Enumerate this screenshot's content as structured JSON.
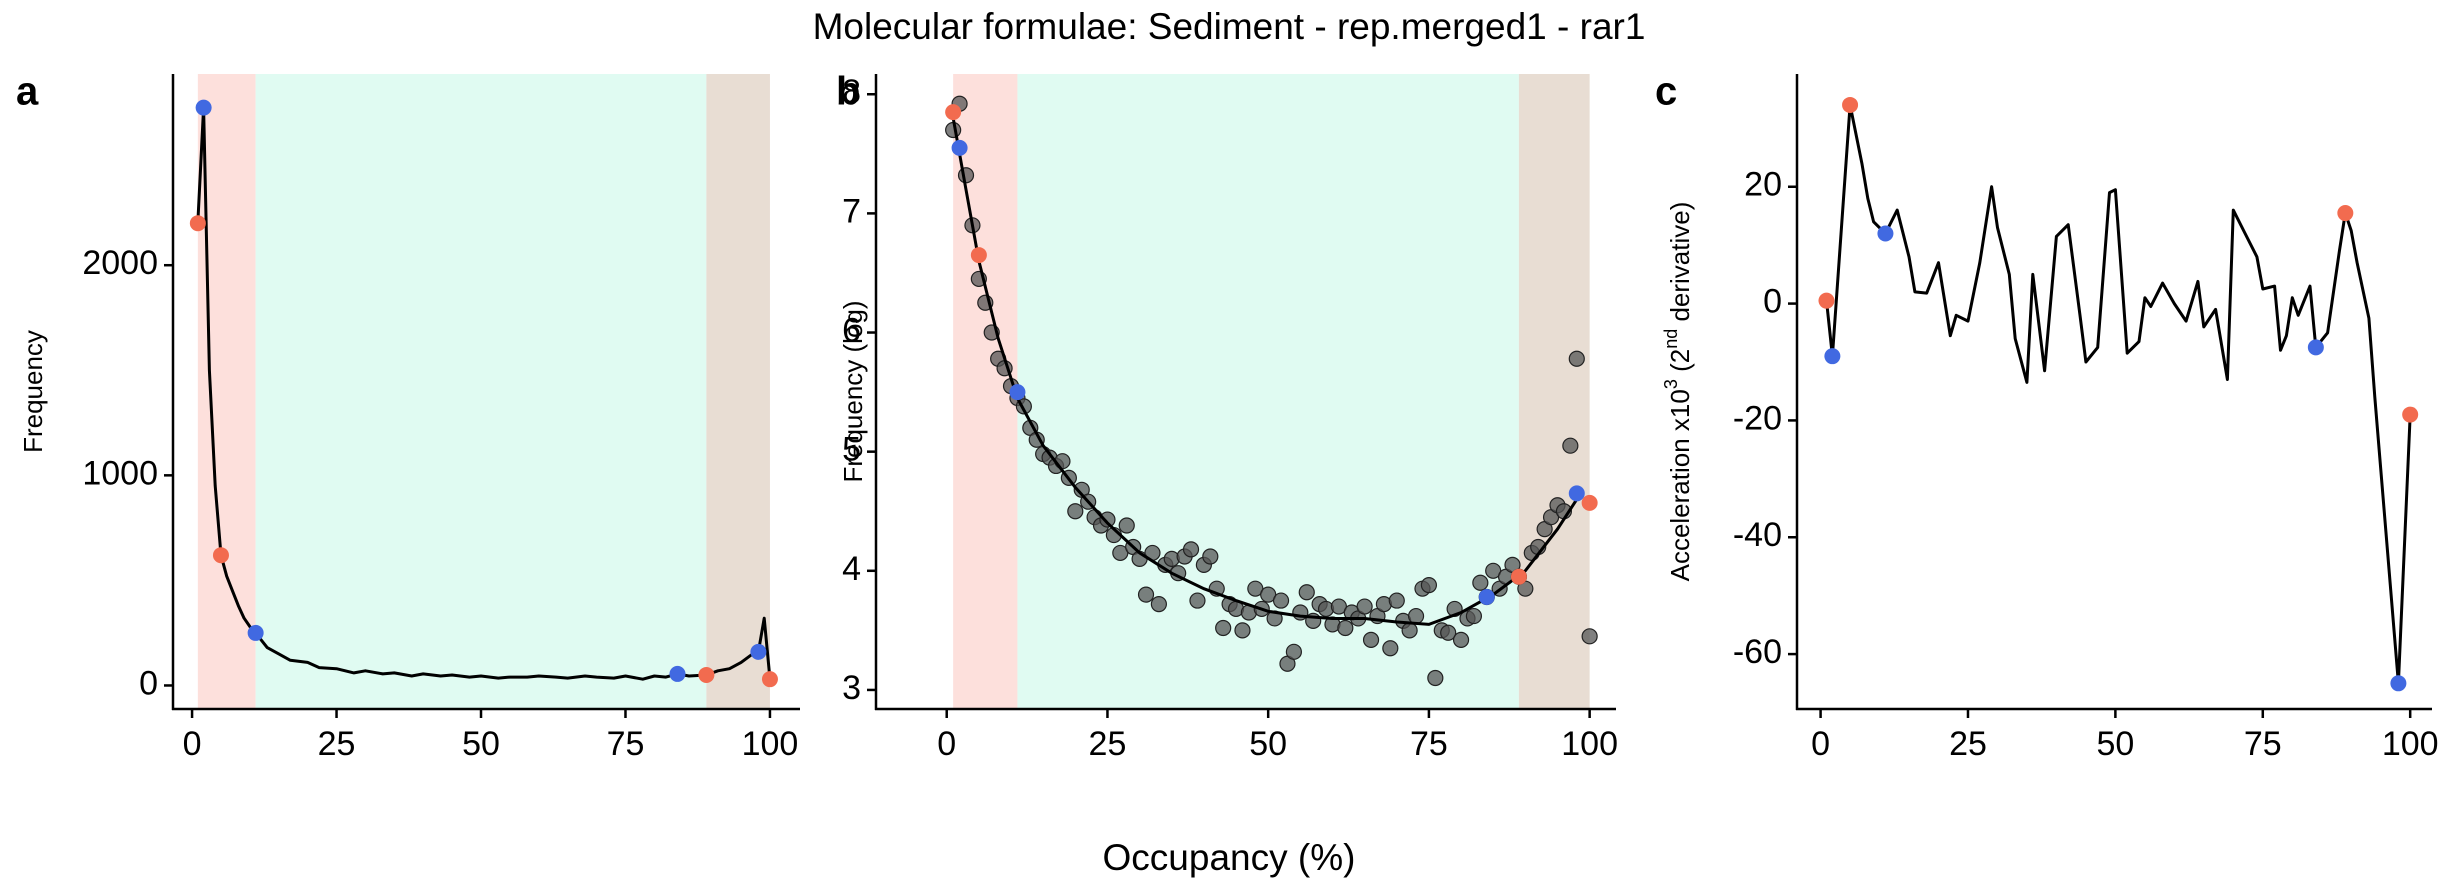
{
  "title": "Molecular formulae: Sediment - rep.merged1 - rar1",
  "x_label": "Occupancy (%)",
  "chart_data": [
    {
      "type": "line",
      "panel_label": "a",
      "ylabel": [
        "Frequency"
      ],
      "xlim": [
        -3.3,
        105.2
      ],
      "ylim": [
        -112,
        2910
      ],
      "xticks": [
        0,
        25,
        50,
        75,
        100
      ],
      "yticks": [
        0,
        1000,
        2000
      ],
      "bands": [
        {
          "from": 1,
          "to": 11,
          "color": "#fde0dc"
        },
        {
          "from": 11,
          "to": 89,
          "color": "#e0fbf2"
        },
        {
          "from": 89,
          "to": 100,
          "color": "#e8ddd3"
        }
      ],
      "x": [
        1,
        2,
        3,
        4,
        5,
        6,
        7,
        8,
        9,
        10,
        11,
        13,
        15,
        17,
        20,
        22,
        25,
        28,
        30,
        33,
        35,
        38,
        40,
        43,
        45,
        48,
        50,
        53,
        55,
        58,
        60,
        63,
        65,
        68,
        70,
        73,
        75,
        78,
        80,
        82,
        84,
        86,
        89,
        91,
        93,
        95,
        97,
        98,
        99,
        100
      ],
      "values": [
        2200,
        2750,
        1500,
        950,
        620,
        520,
        450,
        380,
        320,
        280,
        250,
        180,
        150,
        120,
        110,
        85,
        80,
        60,
        70,
        55,
        60,
        45,
        55,
        45,
        50,
        40,
        45,
        35,
        40,
        40,
        45,
        40,
        35,
        45,
        40,
        35,
        45,
        30,
        45,
        40,
        55,
        45,
        50,
        70,
        80,
        110,
        150,
        160,
        320,
        30
      ],
      "color": "#000000",
      "markers": {
        "x": [
          1,
          2,
          5,
          11,
          84,
          89,
          98,
          100
        ],
        "values": [
          2200,
          2750,
          620,
          250,
          55,
          50,
          160,
          30
        ],
        "colors": [
          "#f26b4f",
          "#4169e1",
          "#f26b4f",
          "#4169e1",
          "#4169e1",
          "#f26b4f",
          "#4169e1",
          "#f26b4f"
        ]
      }
    },
    {
      "type": "scatter",
      "panel_label": "b",
      "ylabel": [
        "Frequency (log)"
      ],
      "xlim": [
        -11,
        104.1
      ],
      "ylim": [
        2.84,
        8.17
      ],
      "xticks": [
        0,
        25,
        50,
        75,
        100
      ],
      "yticks": [
        3,
        4,
        5,
        6,
        7,
        8
      ],
      "bands": [
        {
          "from": 1,
          "to": 11,
          "color": "#fde0dc"
        },
        {
          "from": 11,
          "to": 89,
          "color": "#e0fbf2"
        },
        {
          "from": 89,
          "to": 100,
          "color": "#e8ddd3"
        }
      ],
      "x": [
        1,
        2,
        3,
        4,
        5,
        6,
        7,
        8,
        9,
        10,
        11,
        12,
        13,
        14,
        15,
        16,
        17,
        18,
        19,
        20,
        21,
        22,
        23,
        24,
        25,
        26,
        27,
        28,
        29,
        30,
        31,
        32,
        33,
        34,
        35,
        36,
        37,
        38,
        39,
        40,
        41,
        42,
        43,
        44,
        45,
        46,
        47,
        48,
        49,
        50,
        51,
        52,
        53,
        54,
        55,
        56,
        57,
        58,
        59,
        60,
        61,
        62,
        63,
        64,
        65,
        66,
        67,
        68,
        69,
        70,
        71,
        72,
        73,
        74,
        75,
        76,
        77,
        78,
        79,
        80,
        81,
        82,
        83,
        84,
        85,
        86,
        87,
        88,
        89,
        90,
        91,
        92,
        93,
        94,
        95,
        96,
        97,
        98,
        100
      ],
      "values": [
        7.7,
        7.92,
        7.32,
        6.9,
        6.45,
        6.25,
        6.0,
        5.78,
        5.7,
        5.55,
        5.45,
        5.38,
        5.2,
        5.1,
        4.98,
        4.95,
        4.88,
        4.92,
        4.78,
        4.5,
        4.68,
        4.58,
        4.45,
        4.38,
        4.43,
        4.3,
        4.15,
        4.38,
        4.2,
        4.1,
        3.8,
        4.15,
        3.72,
        4.05,
        4.1,
        3.98,
        4.12,
        4.18,
        3.75,
        4.05,
        4.12,
        3.85,
        3.52,
        3.72,
        3.68,
        3.5,
        3.65,
        3.85,
        3.68,
        3.8,
        3.6,
        3.75,
        3.22,
        3.32,
        3.65,
        3.82,
        3.58,
        3.72,
        3.68,
        3.55,
        3.7,
        3.52,
        3.65,
        3.6,
        3.7,
        3.42,
        3.62,
        3.72,
        3.35,
        3.75,
        3.58,
        3.5,
        3.62,
        3.85,
        3.88,
        3.1,
        3.5,
        3.48,
        3.68,
        3.42,
        3.6,
        3.62,
        3.9,
        3.78,
        4.0,
        3.85,
        3.95,
        4.05,
        3.95,
        3.85,
        4.15,
        4.2,
        4.35,
        4.45,
        4.55,
        4.5,
        5.05,
        5.78,
        3.45
      ],
      "color": "#555555",
      "smooth": {
        "x": [
          1,
          3,
          5,
          8,
          11,
          15,
          20,
          25,
          30,
          35,
          40,
          45,
          50,
          55,
          60,
          65,
          70,
          75,
          80,
          85,
          90,
          95,
          98
        ],
        "values": [
          7.8,
          7.2,
          6.6,
          5.95,
          5.45,
          5.05,
          4.7,
          4.4,
          4.15,
          3.98,
          3.85,
          3.75,
          3.66,
          3.62,
          3.6,
          3.6,
          3.57,
          3.55,
          3.65,
          3.8,
          4.0,
          4.35,
          4.6
        ],
        "color": "#000000"
      },
      "markers": {
        "x": [
          1,
          2,
          5,
          11,
          84,
          89,
          98,
          100
        ],
        "values": [
          7.85,
          7.55,
          6.65,
          5.5,
          3.78,
          3.95,
          4.65,
          4.57
        ],
        "colors": [
          "#f26b4f",
          "#4169e1",
          "#f26b4f",
          "#4169e1",
          "#4169e1",
          "#f26b4f",
          "#4169e1",
          "#f26b4f"
        ]
      }
    },
    {
      "type": "line",
      "panel_label": "c",
      "ylabel": [
        "Acceleration x10",
        "3",
        " (2",
        "nd",
        " derivative)"
      ],
      "xlim": [
        -4,
        103.7
      ],
      "ylim": [
        -69.4,
        39.3
      ],
      "xticks": [
        0,
        25,
        50,
        75,
        100
      ],
      "yticks": [
        -60,
        -40,
        -20,
        0,
        20
      ],
      "x": [
        1,
        2,
        5,
        7,
        8,
        9,
        11,
        13,
        15,
        16,
        18,
        20,
        22,
        23,
        25,
        27,
        29,
        30,
        32,
        33,
        35,
        36,
        38,
        40,
        42,
        44,
        45,
        47,
        49,
        50,
        52,
        54,
        55,
        56,
        58,
        60,
        62,
        64,
        65,
        67,
        69,
        70,
        72,
        74,
        75,
        77,
        78,
        79,
        80,
        81,
        83,
        84,
        86,
        88,
        89,
        90,
        91,
        93,
        94,
        98,
        100
      ],
      "values": [
        0.5,
        -9,
        34,
        24,
        18,
        14,
        12,
        16,
        8,
        2,
        1.8,
        7,
        -5.5,
        -2,
        -3,
        7,
        20,
        13,
        5,
        -6,
        -13.5,
        5,
        -11.5,
        11.5,
        13.5,
        -2,
        -10,
        -7.5,
        19,
        19.5,
        -8.5,
        -6.5,
        1,
        -0.5,
        3.5,
        0,
        -3,
        3.8,
        -4,
        -1,
        -13,
        16,
        12,
        8,
        2.5,
        3,
        -8,
        -5.5,
        1,
        -2,
        3,
        -7.5,
        -5,
        9,
        15.5,
        12.5,
        7,
        -2.5,
        -16,
        -65,
        -19
      ],
      "color": "#000000",
      "markers": {
        "x": [
          1,
          2,
          5,
          11,
          84,
          89,
          98,
          100
        ],
        "values": [
          0.5,
          -9,
          34,
          12,
          -7.5,
          15.5,
          -65,
          -19
        ],
        "colors": [
          "#f26b4f",
          "#4169e1",
          "#f26b4f",
          "#4169e1",
          "#4169e1",
          "#f26b4f",
          "#4169e1",
          "#f26b4f"
        ]
      }
    }
  ]
}
